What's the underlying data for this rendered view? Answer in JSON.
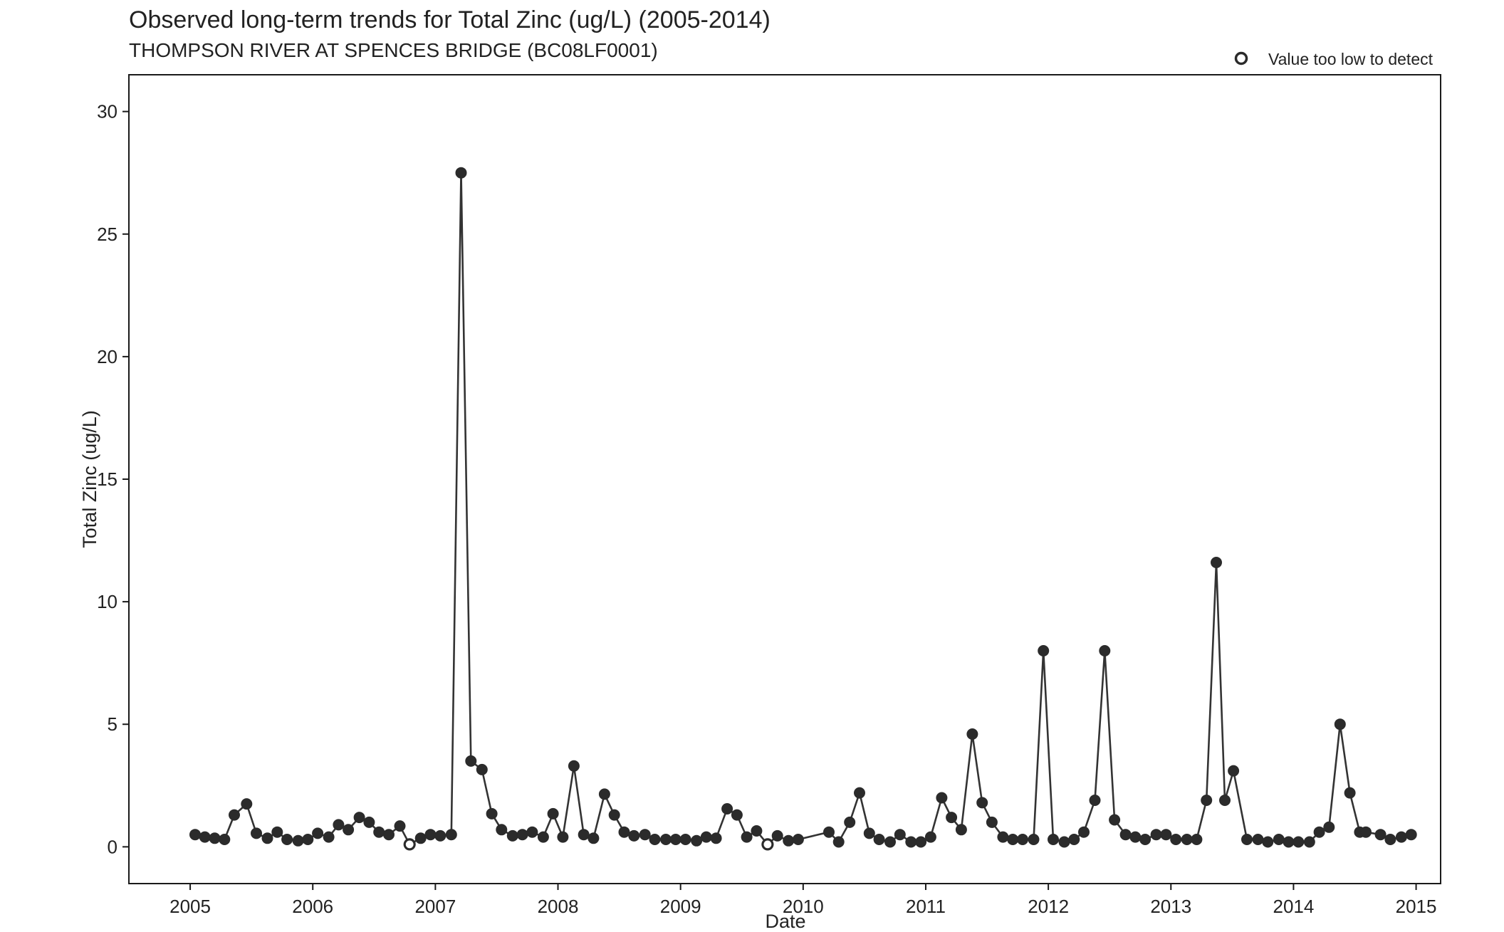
{
  "chart_data": {
    "type": "line",
    "title": "Observed long-term trends for Total Zinc (ug/L) (2005-2014)",
    "subtitle": "THOMPSON RIVER AT SPENCES BRIDGE (BC08LF0001)",
    "xlabel": "Date",
    "ylabel": "Total Zinc (ug/L)",
    "xlim": [
      2004.5,
      2015.2
    ],
    "ylim": [
      -1.5,
      31.5
    ],
    "x_ticks": [
      2005,
      2006,
      2007,
      2008,
      2009,
      2010,
      2011,
      2012,
      2013,
      2014,
      2015
    ],
    "y_ticks": [
      0,
      5,
      10,
      15,
      20,
      25,
      30
    ],
    "grid": false,
    "legend": {
      "position": "top-right",
      "entries": [
        {
          "label": "Value too low to detect",
          "marker": "open-circle"
        }
      ]
    },
    "colors": {
      "line": "#333333",
      "point": "#2b2b2b",
      "frame": "#1a1a1a"
    },
    "series": [
      {
        "x": [
          2005.04,
          2005.12,
          2005.2,
          2005.28,
          2005.36,
          2005.46,
          2005.54,
          2005.63,
          2005.71,
          2005.79,
          2005.88,
          2005.96,
          2006.04,
          2006.13,
          2006.21,
          2006.29,
          2006.38,
          2006.46,
          2006.54,
          2006.62,
          2006.71,
          2006.79,
          2006.88,
          2006.96,
          2007.04,
          2007.13,
          2007.21,
          2007.29,
          2007.38,
          2007.46,
          2007.54,
          2007.63,
          2007.71,
          2007.79,
          2007.88,
          2007.96,
          2008.04,
          2008.13,
          2008.21,
          2008.29,
          2008.38,
          2008.46,
          2008.54,
          2008.62,
          2008.71,
          2008.79,
          2008.88,
          2008.96,
          2009.04,
          2009.13,
          2009.21,
          2009.29,
          2009.38,
          2009.46,
          2009.54,
          2009.62,
          2009.71,
          2009.79,
          2009.88,
          2009.96,
          2010.21,
          2010.29,
          2010.38,
          2010.46,
          2010.54,
          2010.62,
          2010.71,
          2010.79,
          2010.88,
          2010.96,
          2011.04,
          2011.13,
          2011.21,
          2011.29,
          2011.38,
          2011.46,
          2011.54,
          2011.63,
          2011.71,
          2011.79,
          2011.88,
          2011.96,
          2012.04,
          2012.13,
          2012.21,
          2012.29,
          2012.38,
          2012.46,
          2012.54,
          2012.63,
          2012.71,
          2012.79,
          2012.88,
          2012.96,
          2013.04,
          2013.13,
          2013.21,
          2013.29,
          2013.37,
          2013.44,
          2013.51,
          2013.62,
          2013.71,
          2013.79,
          2013.88,
          2013.96,
          2014.04,
          2014.13,
          2014.21,
          2014.29,
          2014.38,
          2014.46,
          2014.54,
          2014.59,
          2014.71,
          2014.79,
          2014.88,
          2014.96
        ],
        "y": [
          0.5,
          0.4,
          0.35,
          0.3,
          1.3,
          1.75,
          0.55,
          0.35,
          0.6,
          0.3,
          0.25,
          0.3,
          0.55,
          0.4,
          0.9,
          0.7,
          1.2,
          1.0,
          0.6,
          0.5,
          0.85,
          0.1,
          0.35,
          0.5,
          0.45,
          0.5,
          27.5,
          3.5,
          3.15,
          1.35,
          0.7,
          0.45,
          0.5,
          0.6,
          0.4,
          1.35,
          0.4,
          3.3,
          0.5,
          0.35,
          2.15,
          1.3,
          0.6,
          0.45,
          0.5,
          0.3,
          0.3,
          0.3,
          0.3,
          0.25,
          0.4,
          0.35,
          1.55,
          1.3,
          0.4,
          0.65,
          0.1,
          0.45,
          0.25,
          0.3,
          0.6,
          0.2,
          1.0,
          2.2,
          0.55,
          0.3,
          0.2,
          0.5,
          0.2,
          0.2,
          0.4,
          2.0,
          1.2,
          0.7,
          4.6,
          1.8,
          1.0,
          0.4,
          0.3,
          0.3,
          0.3,
          8.0,
          0.3,
          0.2,
          0.3,
          0.6,
          1.9,
          8.0,
          1.1,
          0.5,
          0.4,
          0.3,
          0.5,
          0.5,
          0.3,
          0.3,
          0.3,
          1.9,
          11.6,
          1.9,
          3.1,
          0.3,
          0.3,
          0.2,
          0.3,
          0.2,
          0.2,
          0.2,
          0.6,
          0.8,
          5.0,
          2.2,
          0.6,
          0.6,
          0.5,
          0.3,
          0.4,
          0.5
        ],
        "below_detection": [
          false,
          false,
          false,
          false,
          false,
          false,
          false,
          false,
          false,
          false,
          false,
          false,
          false,
          false,
          false,
          false,
          false,
          false,
          false,
          false,
          false,
          true,
          false,
          false,
          false,
          false,
          false,
          false,
          false,
          false,
          false,
          false,
          false,
          false,
          false,
          false,
          false,
          false,
          false,
          false,
          false,
          false,
          false,
          false,
          false,
          false,
          false,
          false,
          false,
          false,
          false,
          false,
          false,
          false,
          false,
          false,
          true,
          false,
          false,
          false,
          false,
          false,
          false,
          false,
          false,
          false,
          false,
          false,
          false,
          false,
          false,
          false,
          false,
          false,
          false,
          false,
          false,
          false,
          false,
          false,
          false,
          false,
          false,
          false,
          false,
          false,
          false,
          false,
          false,
          false,
          false,
          false,
          false,
          false,
          false,
          false,
          false,
          false,
          false,
          false,
          false,
          false,
          false,
          false,
          false,
          false,
          false,
          false,
          false,
          false,
          false,
          false,
          false,
          false,
          false,
          false,
          false,
          false
        ]
      }
    ]
  }
}
